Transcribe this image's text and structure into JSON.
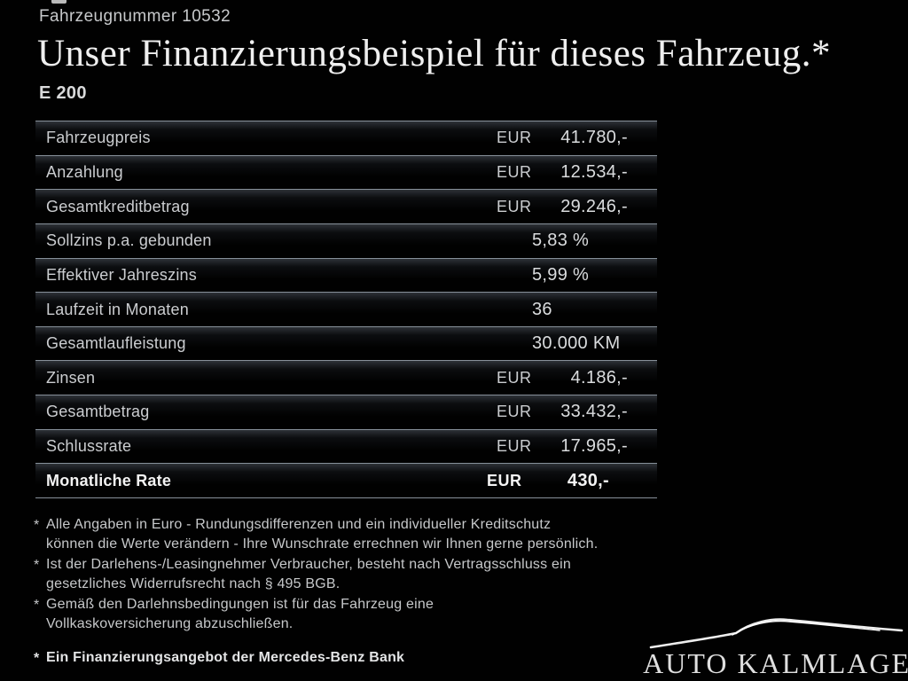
{
  "header": {
    "vehicle_number": "Fahrzeugnummer 10532",
    "title": "Unser Finanzierungsbeispiel für dieses Fahrzeug.*",
    "model": "E 200"
  },
  "table": {
    "rows": [
      {
        "label": "Fahrzeugpreis",
        "currency": "EUR",
        "value": "41.780,-",
        "align": "right",
        "bold": false
      },
      {
        "label": "Anzahlung",
        "currency": "EUR",
        "value": "12.534,-",
        "align": "right",
        "bold": false
      },
      {
        "label": "Gesamtkreditbetrag",
        "currency": "EUR",
        "value": "29.246,-",
        "align": "right",
        "bold": false
      },
      {
        "label": "Sollzins p.a. gebunden",
        "currency": "",
        "value": "5,83 %",
        "align": "center",
        "bold": false
      },
      {
        "label": "Effektiver Jahreszins",
        "currency": "",
        "value": "5,99 %",
        "align": "center",
        "bold": false
      },
      {
        "label": "Laufzeit in Monaten",
        "currency": "",
        "value": "36",
        "align": "center",
        "bold": false
      },
      {
        "label": "Gesamtlaufleistung",
        "currency": "",
        "value": "30.000 KM",
        "align": "center",
        "bold": false
      },
      {
        "label": "Zinsen",
        "currency": "EUR",
        "value": "4.186,-",
        "align": "right",
        "bold": false
      },
      {
        "label": "Gesamtbetrag",
        "currency": "EUR",
        "value": "33.432,-",
        "align": "right",
        "bold": false
      },
      {
        "label": "Schlussrate",
        "currency": "EUR",
        "value": "17.965,-",
        "align": "right",
        "bold": false
      },
      {
        "label": "Monatliche Rate",
        "currency": "EUR",
        "value": "430,-",
        "align": "right",
        "bold": true
      }
    ]
  },
  "footnotes": [
    {
      "marker": "*",
      "bold": false,
      "lines": [
        "Alle Angaben in Euro - Rundungsdifferenzen und ein individueller Kreditschutz",
        "können die Werte verändern - Ihre Wunschrate errechnen wir Ihnen gerne persönlich."
      ]
    },
    {
      "marker": "*",
      "bold": false,
      "lines": [
        "Ist der Darlehens-/Leasingnehmer Verbraucher, besteht nach Vertragsschluss ein",
        "gesetzliches Widerrufsrecht nach § 495 BGB."
      ]
    },
    {
      "marker": "*",
      "bold": false,
      "lines": [
        "Gemäß den Darlehnsbedingungen ist für das Fahrzeug eine",
        "Vollkaskoversicherung abzuschließen."
      ]
    },
    {
      "marker": "*",
      "bold": true,
      "lines": [
        "Ein Finanzierungsangebot der Mercedes-Benz Bank"
      ]
    }
  ],
  "dealer": {
    "name": "AUTO KALMLAGE",
    "logo_icon": "car-silhouette"
  },
  "colors": {
    "background": "#000000",
    "separator_line": "#87909a",
    "text_primary": "#efefef",
    "text_secondary": "#c7c9cb"
  }
}
